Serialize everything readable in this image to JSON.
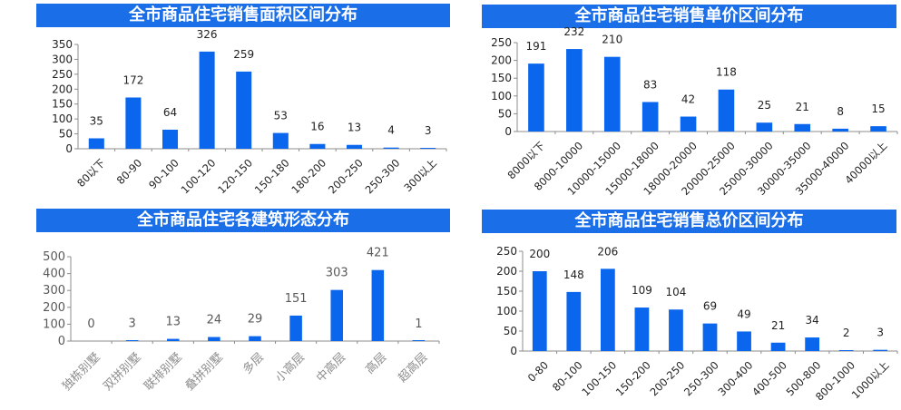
{
  "colors": {
    "bar": "#0b66ee",
    "title_bg": "#1a6ee8",
    "title_text": "#ffffff",
    "axis": "#8c8c8c"
  },
  "chart_data": [
    {
      "type": "bar",
      "title": "全市商品住宅销售面积区间分布",
      "categories": [
        "80以下",
        "80-90",
        "90-100",
        "100-120",
        "120-150",
        "150-180",
        "180-200",
        "200-250",
        "250-300",
        "300以上"
      ],
      "values": [
        35,
        172,
        64,
        326,
        259,
        53,
        16,
        13,
        4,
        3
      ],
      "ylim": [
        0,
        350
      ],
      "yticks": [
        0,
        50,
        100,
        150,
        200,
        250,
        300,
        350
      ],
      "grid": false,
      "legend": "none"
    },
    {
      "type": "bar",
      "title": "全市商品住宅销售单价区间分布",
      "categories": [
        "8000以下",
        "8000-10000",
        "10000-15000",
        "15000-18000",
        "18000-20000",
        "20000-25000",
        "25000-30000",
        "30000-35000",
        "35000-40000",
        "40000以上"
      ],
      "values": [
        191,
        232,
        210,
        83,
        42,
        118,
        25,
        21,
        8,
        15
      ],
      "ylim": [
        0,
        250
      ],
      "yticks": [
        0,
        50,
        100,
        150,
        200,
        250
      ],
      "grid": false,
      "legend": "none"
    },
    {
      "type": "bar",
      "title": "全市商品住宅各建筑形态分布",
      "categories": [
        "独栋别墅",
        "双拼别墅",
        "联排别墅",
        "叠拼别墅",
        "多层",
        "小高层",
        "中高层",
        "高层",
        "超高层"
      ],
      "values": [
        0,
        3,
        13,
        24,
        29,
        151,
        303,
        421,
        1
      ],
      "ylim": [
        0,
        500
      ],
      "yticks": [
        0,
        100,
        200,
        300,
        400,
        500
      ],
      "grid": false,
      "legend": "none"
    },
    {
      "type": "bar",
      "title": "全市商品住宅销售总价区间分布",
      "categories": [
        "0-80",
        "80-100",
        "100-150",
        "150-200",
        "200-250",
        "250-300",
        "300-400",
        "400-500",
        "500-800",
        "800-1000",
        "1000以上"
      ],
      "values": [
        200,
        148,
        206,
        109,
        104,
        69,
        49,
        21,
        34,
        2,
        3
      ],
      "ylim": [
        0,
        250
      ],
      "yticks": [
        0,
        50,
        100,
        150,
        200,
        250
      ],
      "grid": false,
      "legend": "none"
    }
  ]
}
